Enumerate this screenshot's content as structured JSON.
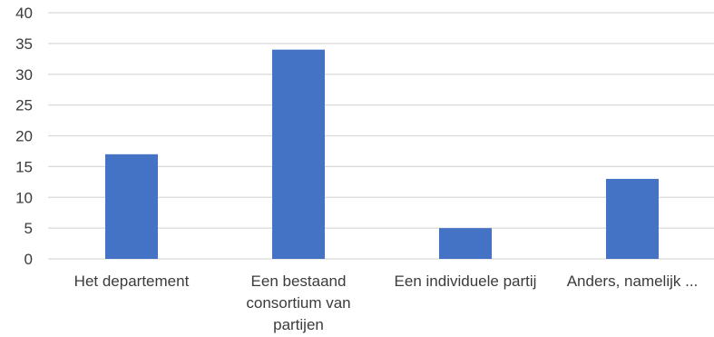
{
  "chart_data": {
    "type": "bar",
    "categories": [
      "Het departement",
      "Een bestaand consortium van partijen",
      "Een individuele partij",
      "Anders, namelijk ..."
    ],
    "category_lines": [
      [
        "Het departement"
      ],
      [
        "Een bestaand",
        "consortium van",
        "partijen"
      ],
      [
        "Een individuele partij"
      ],
      [
        "Anders, namelijk ..."
      ]
    ],
    "values": [
      17,
      34,
      5,
      13
    ],
    "ylim": [
      0,
      40
    ],
    "yticks": [
      0,
      5,
      10,
      15,
      20,
      25,
      30,
      35,
      40
    ],
    "grid": true,
    "legend": "none",
    "colors": {
      "bar": "#4472C4",
      "grid": "#D9D9D9",
      "text": "#3B3B3B"
    }
  }
}
